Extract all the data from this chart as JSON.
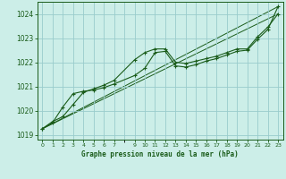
{
  "bg_color": "#cceee8",
  "grid_color": "#99cccc",
  "line_color": "#1a5c1a",
  "marker_color": "#1a5c1a",
  "text_color": "#1a5c1a",
  "xlabel": "Graphe pression niveau de la mer (hPa)",
  "ylim": [
    1018.8,
    1024.5
  ],
  "xlim": [
    -0.5,
    23.5
  ],
  "yticks": [
    1019,
    1020,
    1021,
    1022,
    1023,
    1024
  ],
  "xtick_vals": [
    0,
    1,
    2,
    3,
    4,
    5,
    6,
    7,
    9,
    10,
    11,
    12,
    13,
    14,
    15,
    16,
    17,
    18,
    19,
    20,
    21,
    22,
    23
  ],
  "xtick_labels": [
    "0",
    "1",
    "2",
    "3",
    "4",
    "5",
    "6",
    "7",
    "9",
    "10",
    "11",
    "12",
    "13",
    "14",
    "15",
    "16",
    "17",
    "18",
    "19",
    "20",
    "21",
    "22",
    "23"
  ],
  "series1_x": [
    0,
    1,
    2,
    3,
    4,
    5,
    6,
    7,
    9,
    10,
    11,
    12,
    13,
    14,
    15,
    16,
    17,
    18,
    19,
    20,
    21,
    22,
    23
  ],
  "series1_y": [
    1019.25,
    1019.55,
    1019.75,
    1020.25,
    1020.75,
    1020.9,
    1021.05,
    1021.25,
    1022.1,
    1022.4,
    1022.55,
    1022.55,
    1022.0,
    1021.95,
    1022.05,
    1022.15,
    1022.25,
    1022.4,
    1022.55,
    1022.55,
    1023.05,
    1023.45,
    1024.0
  ],
  "series2_x": [
    0,
    1,
    2,
    3,
    4,
    5,
    6,
    7,
    9,
    10,
    11,
    12,
    13,
    14,
    15,
    16,
    17,
    18,
    19,
    20,
    21,
    22,
    23
  ],
  "series2_y": [
    1019.25,
    1019.5,
    1020.15,
    1020.7,
    1020.8,
    1020.85,
    1020.95,
    1021.1,
    1021.45,
    1021.75,
    1022.4,
    1022.45,
    1021.85,
    1021.8,
    1021.9,
    1022.05,
    1022.15,
    1022.3,
    1022.45,
    1022.5,
    1022.95,
    1023.35,
    1024.3
  ],
  "trend1_x": [
    0,
    23
  ],
  "trend1_y": [
    1019.25,
    1024.0
  ],
  "trend2_x": [
    0,
    23
  ],
  "trend2_y": [
    1019.25,
    1024.3
  ]
}
